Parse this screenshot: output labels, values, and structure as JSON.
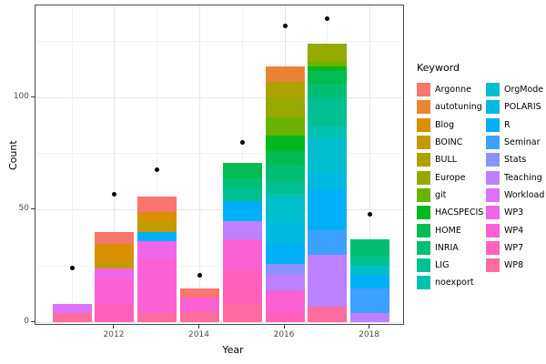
{
  "chart_data": {
    "type": "bar",
    "stacked": true,
    "title": "",
    "xlabel": "Year",
    "ylabel": "Count",
    "legend_title": "Keyword",
    "grid": true,
    "legend_position": "right",
    "x_major_ticks": [
      2012,
      2014,
      2016,
      2018
    ],
    "x_minor_ticks": [
      2011,
      2013,
      2015,
      2017
    ],
    "y_major_ticks": [
      0,
      50,
      100
    ],
    "y_minor_ticks": [
      25,
      75,
      125
    ],
    "ylim": [
      0,
      141
    ],
    "xlim": [
      2010.15,
      2018.8
    ],
    "keywords": [
      {
        "name": "Argonne",
        "color": "#F8766D"
      },
      {
        "name": "autotuning",
        "color": "#EB8335"
      },
      {
        "name": "Blog",
        "color": "#D98F00"
      },
      {
        "name": "BOINC",
        "color": "#C49A00"
      },
      {
        "name": "BULL",
        "color": "#ADA200"
      },
      {
        "name": "Europe",
        "color": "#95A900"
      },
      {
        "name": "git",
        "color": "#6BB100"
      },
      {
        "name": "HACSPECIS",
        "color": "#00B81F"
      },
      {
        "name": "HOME",
        "color": "#00BC51"
      },
      {
        "name": "INRIA",
        "color": "#00BF74"
      },
      {
        "name": "LIG",
        "color": "#00C092"
      },
      {
        "name": "noexport",
        "color": "#00C1B2"
      },
      {
        "name": "OrgMode",
        "color": "#00BECE"
      },
      {
        "name": "POLARIS",
        "color": "#00B9E3"
      },
      {
        "name": "R",
        "color": "#00B0F6"
      },
      {
        "name": "Seminar",
        "color": "#3DA1FF"
      },
      {
        "name": "Stats",
        "color": "#8B93FF"
      },
      {
        "name": "Teaching",
        "color": "#BC81FF"
      },
      {
        "name": "Workload",
        "color": "#DC71FA"
      },
      {
        "name": "WP3",
        "color": "#F166E8"
      },
      {
        "name": "WP4",
        "color": "#FB61D5"
      },
      {
        "name": "WP7",
        "color": "#FF62BC"
      },
      {
        "name": "WP8",
        "color": "#FF6C9F"
      }
    ],
    "bars": [
      {
        "year": 2011,
        "total": 8,
        "segments": [
          {
            "keyword": "WP8",
            "value": 4
          },
          {
            "keyword": "Workload",
            "value": 4
          }
        ]
      },
      {
        "year": 2012,
        "total": 40,
        "segments": [
          {
            "keyword": "WP7",
            "value": 8
          },
          {
            "keyword": "WP4",
            "value": 12
          },
          {
            "keyword": "WP3",
            "value": 4
          },
          {
            "keyword": "BOINC",
            "value": 3
          },
          {
            "keyword": "Blog",
            "value": 8
          },
          {
            "keyword": "Argonne",
            "value": 5
          }
        ]
      },
      {
        "year": 2013,
        "total": 56,
        "segments": [
          {
            "keyword": "WP8",
            "value": 4
          },
          {
            "keyword": "WP4",
            "value": 24
          },
          {
            "keyword": "WP3",
            "value": 8
          },
          {
            "keyword": "R",
            "value": 4
          },
          {
            "keyword": "BOINC",
            "value": 5
          },
          {
            "keyword": "Blog",
            "value": 4
          },
          {
            "keyword": "Argonne",
            "value": 7
          }
        ]
      },
      {
        "year": 2014,
        "total": 15,
        "segments": [
          {
            "keyword": "WP8",
            "value": 5
          },
          {
            "keyword": "WP4",
            "value": 6
          },
          {
            "keyword": "Argonne",
            "value": 4
          }
        ]
      },
      {
        "year": 2015,
        "total": 71,
        "segments": [
          {
            "keyword": "WP8",
            "value": 8
          },
          {
            "keyword": "WP7",
            "value": 15
          },
          {
            "keyword": "WP4",
            "value": 14
          },
          {
            "keyword": "Teaching",
            "value": 8
          },
          {
            "keyword": "R",
            "value": 9
          },
          {
            "keyword": "LIG",
            "value": 6
          },
          {
            "keyword": "INRIA",
            "value": 4
          },
          {
            "keyword": "HOME",
            "value": 7
          }
        ]
      },
      {
        "year": 2016,
        "total": 114,
        "segments": [
          {
            "keyword": "WP7",
            "value": 4
          },
          {
            "keyword": "WP4",
            "value": 10
          },
          {
            "keyword": "Teaching",
            "value": 7
          },
          {
            "keyword": "Stats",
            "value": 5
          },
          {
            "keyword": "R",
            "value": 9
          },
          {
            "keyword": "POLARIS",
            "value": 9
          },
          {
            "keyword": "OrgMode",
            "value": 11
          },
          {
            "keyword": "noexport",
            "value": 2
          },
          {
            "keyword": "LIG",
            "value": 6
          },
          {
            "keyword": "INRIA",
            "value": 7
          },
          {
            "keyword": "HOME",
            "value": 6
          },
          {
            "keyword": "HACSPECIS",
            "value": 7
          },
          {
            "keyword": "git",
            "value": 8
          },
          {
            "keyword": "Europe",
            "value": 9
          },
          {
            "keyword": "BULL",
            "value": 7
          },
          {
            "keyword": "autotuning",
            "value": 7
          }
        ]
      },
      {
        "year": 2017,
        "total": 124,
        "segments": [
          {
            "keyword": "WP8",
            "value": 7
          },
          {
            "keyword": "Teaching",
            "value": 23
          },
          {
            "keyword": "Seminar",
            "value": 11
          },
          {
            "keyword": "R",
            "value": 18
          },
          {
            "keyword": "POLARIS",
            "value": 7
          },
          {
            "keyword": "OrgMode",
            "value": 16
          },
          {
            "keyword": "noexport",
            "value": 5
          },
          {
            "keyword": "LIG",
            "value": 13
          },
          {
            "keyword": "INRIA",
            "value": 6
          },
          {
            "keyword": "HOME",
            "value": 6
          },
          {
            "keyword": "HACSPECIS",
            "value": 2
          },
          {
            "keyword": "git",
            "value": 2
          },
          {
            "keyword": "Europe",
            "value": 8
          }
        ]
      },
      {
        "year": 2018,
        "total": 37,
        "segments": [
          {
            "keyword": "Teaching",
            "value": 4
          },
          {
            "keyword": "Seminar",
            "value": 11
          },
          {
            "keyword": "R",
            "value": 6
          },
          {
            "keyword": "OrgMode",
            "value": 4
          },
          {
            "keyword": "LIG",
            "value": 4
          },
          {
            "keyword": "INRIA",
            "value": 8
          }
        ]
      }
    ],
    "points": [
      {
        "year": 2011,
        "value": 24
      },
      {
        "year": 2012,
        "value": 57
      },
      {
        "year": 2013,
        "value": 68
      },
      {
        "year": 2014,
        "value": 21
      },
      {
        "year": 2015,
        "value": 80
      },
      {
        "year": 2016,
        "value": 132
      },
      {
        "year": 2017,
        "value": 135
      },
      {
        "year": 2018,
        "value": 48
      }
    ]
  }
}
